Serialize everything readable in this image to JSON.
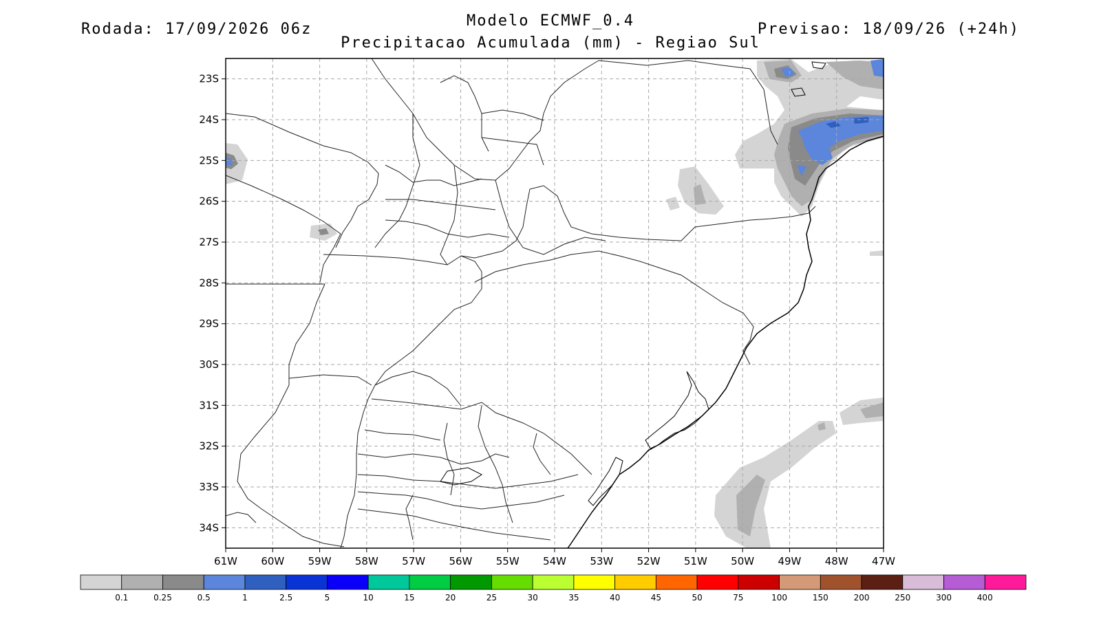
{
  "header": {
    "run_label": "Rodada: 17/09/2026 06z",
    "model_label": "Modelo ECMWF_0.4",
    "forecast_label": "Previsao: 18/09/26 (+24h)",
    "subtitle": "Precipitacao Acumulada (mm) - Regiao Sul"
  },
  "map": {
    "lon_range": [
      -61,
      -47
    ],
    "lat_range": [
      -34.5,
      -22.5
    ],
    "grid": true,
    "lat_ticks": [
      "23S",
      "24S",
      "25S",
      "26S",
      "27S",
      "28S",
      "29S",
      "30S",
      "31S",
      "32S",
      "33S",
      "34S"
    ],
    "lon_ticks": [
      "61W",
      "60W",
      "59W",
      "58W",
      "57W",
      "56W",
      "55W",
      "54W",
      "53W",
      "52W",
      "51W",
      "50W",
      "49W",
      "48W",
      "47W"
    ]
  },
  "colorbar": {
    "colors": [
      "#d4d4d4",
      "#b0b0b0",
      "#8a8a8a",
      "#5b86dc",
      "#2f5fbf",
      "#0a33d6",
      "#0a00fa",
      "#00c89a",
      "#00cc44",
      "#009900",
      "#66dd00",
      "#bbff33",
      "#ffff00",
      "#ffcc00",
      "#ff6600",
      "#ff0000",
      "#cc0000",
      "#d49a78",
      "#a0522d",
      "#5c1f14",
      "#d8bcd8",
      "#b65dd6",
      "#ff1a9a"
    ],
    "labels": [
      "0.1",
      "0.25",
      "0.5",
      "1",
      "2.5",
      "5",
      "10",
      "15",
      "20",
      "25",
      "30",
      "35",
      "40",
      "45",
      "50",
      "75",
      "100",
      "150",
      "200",
      "250",
      "300",
      "400"
    ]
  }
}
